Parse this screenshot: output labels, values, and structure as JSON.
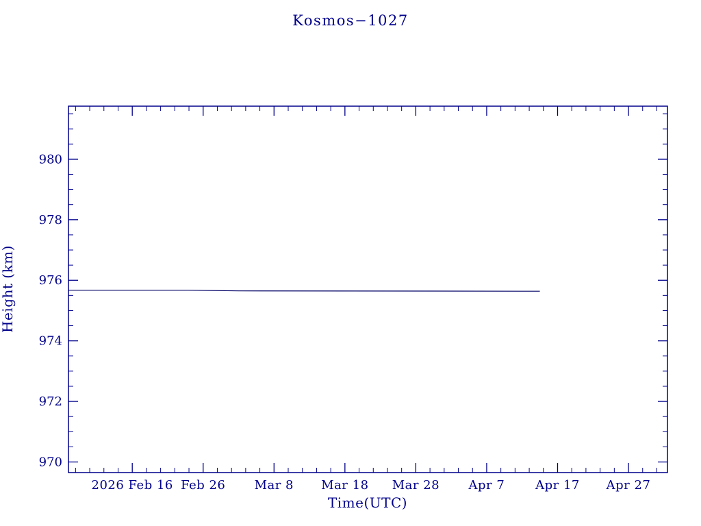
{
  "page": {
    "background": "#ffffff"
  },
  "chart_data": {
    "type": "line",
    "title": "Kosmos−1027",
    "xlabel": "Time(UTC)",
    "ylabel": "Height (km)",
    "axis_color": "#00008B",
    "line_color": "#000066",
    "grid": false,
    "legend": null,
    "x_axis_unit": "day of year 2026",
    "xlim": [
      38,
      122.5
    ],
    "ylim": [
      969.65,
      981.75
    ],
    "y_ticks": [
      970,
      972,
      974,
      976,
      978,
      980
    ],
    "y_minor_step": 0.5,
    "x_minor_step": 2,
    "x_ticks": [
      {
        "day": 47,
        "label": "2026 Feb 16"
      },
      {
        "day": 57,
        "label": "Feb 26"
      },
      {
        "day": 67,
        "label": "Mar 8"
      },
      {
        "day": 77,
        "label": "Mar 18"
      },
      {
        "day": 87,
        "label": "Mar 28"
      },
      {
        "day": 97,
        "label": "Apr 7"
      },
      {
        "day": 107,
        "label": "Apr 17"
      },
      {
        "day": 117,
        "label": "Apr 27"
      }
    ],
    "series": [
      {
        "name": "height",
        "color": "#000066",
        "points": [
          [
            38,
            975.67
          ],
          [
            55,
            975.67
          ],
          [
            62,
            975.65
          ],
          [
            104.5,
            975.64
          ]
        ]
      }
    ]
  }
}
